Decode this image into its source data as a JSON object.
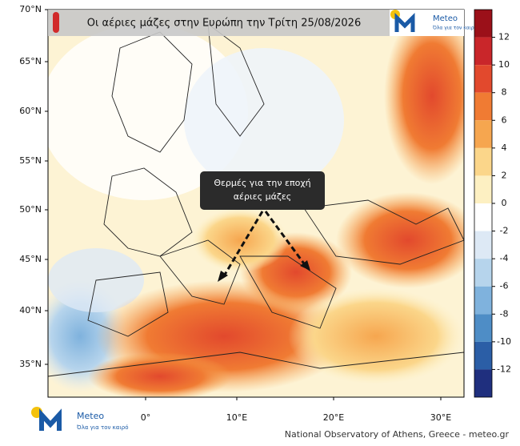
{
  "header": {
    "title": "Οι αέριες μάζες στην Ευρώπη την Τρίτη 25/08/2026"
  },
  "logo": {
    "name": "Meteo",
    "tagline": "Όλα για τον καιρό"
  },
  "map": {
    "lat_labels": [
      "70°N",
      "65°N",
      "60°N",
      "55°N",
      "50°N",
      "45°N",
      "40°N",
      "35°N"
    ],
    "lon_labels": [
      "0°",
      "10°E",
      "20°E",
      "30°E"
    ],
    "annotation": "Θερμές για την εποχή αέριες μάζες"
  },
  "colorbar": {
    "labels": [
      12,
      10,
      8,
      6,
      4,
      2,
      0,
      -2,
      -4,
      -6,
      -8,
      -10,
      -12
    ],
    "colors": [
      "#9b1019",
      "#c9262a",
      "#e2492d",
      "#f07b33",
      "#f6a64f",
      "#fbd68a",
      "#fdf0c2",
      "#ffffff",
      "#dde9f5",
      "#b6d4ec",
      "#7fb2dd",
      "#4e8dc6",
      "#2b5ea6",
      "#1f2f7e"
    ]
  },
  "footer": {
    "credit": "National Observatory of Athens, Greece - meteo.gr"
  }
}
